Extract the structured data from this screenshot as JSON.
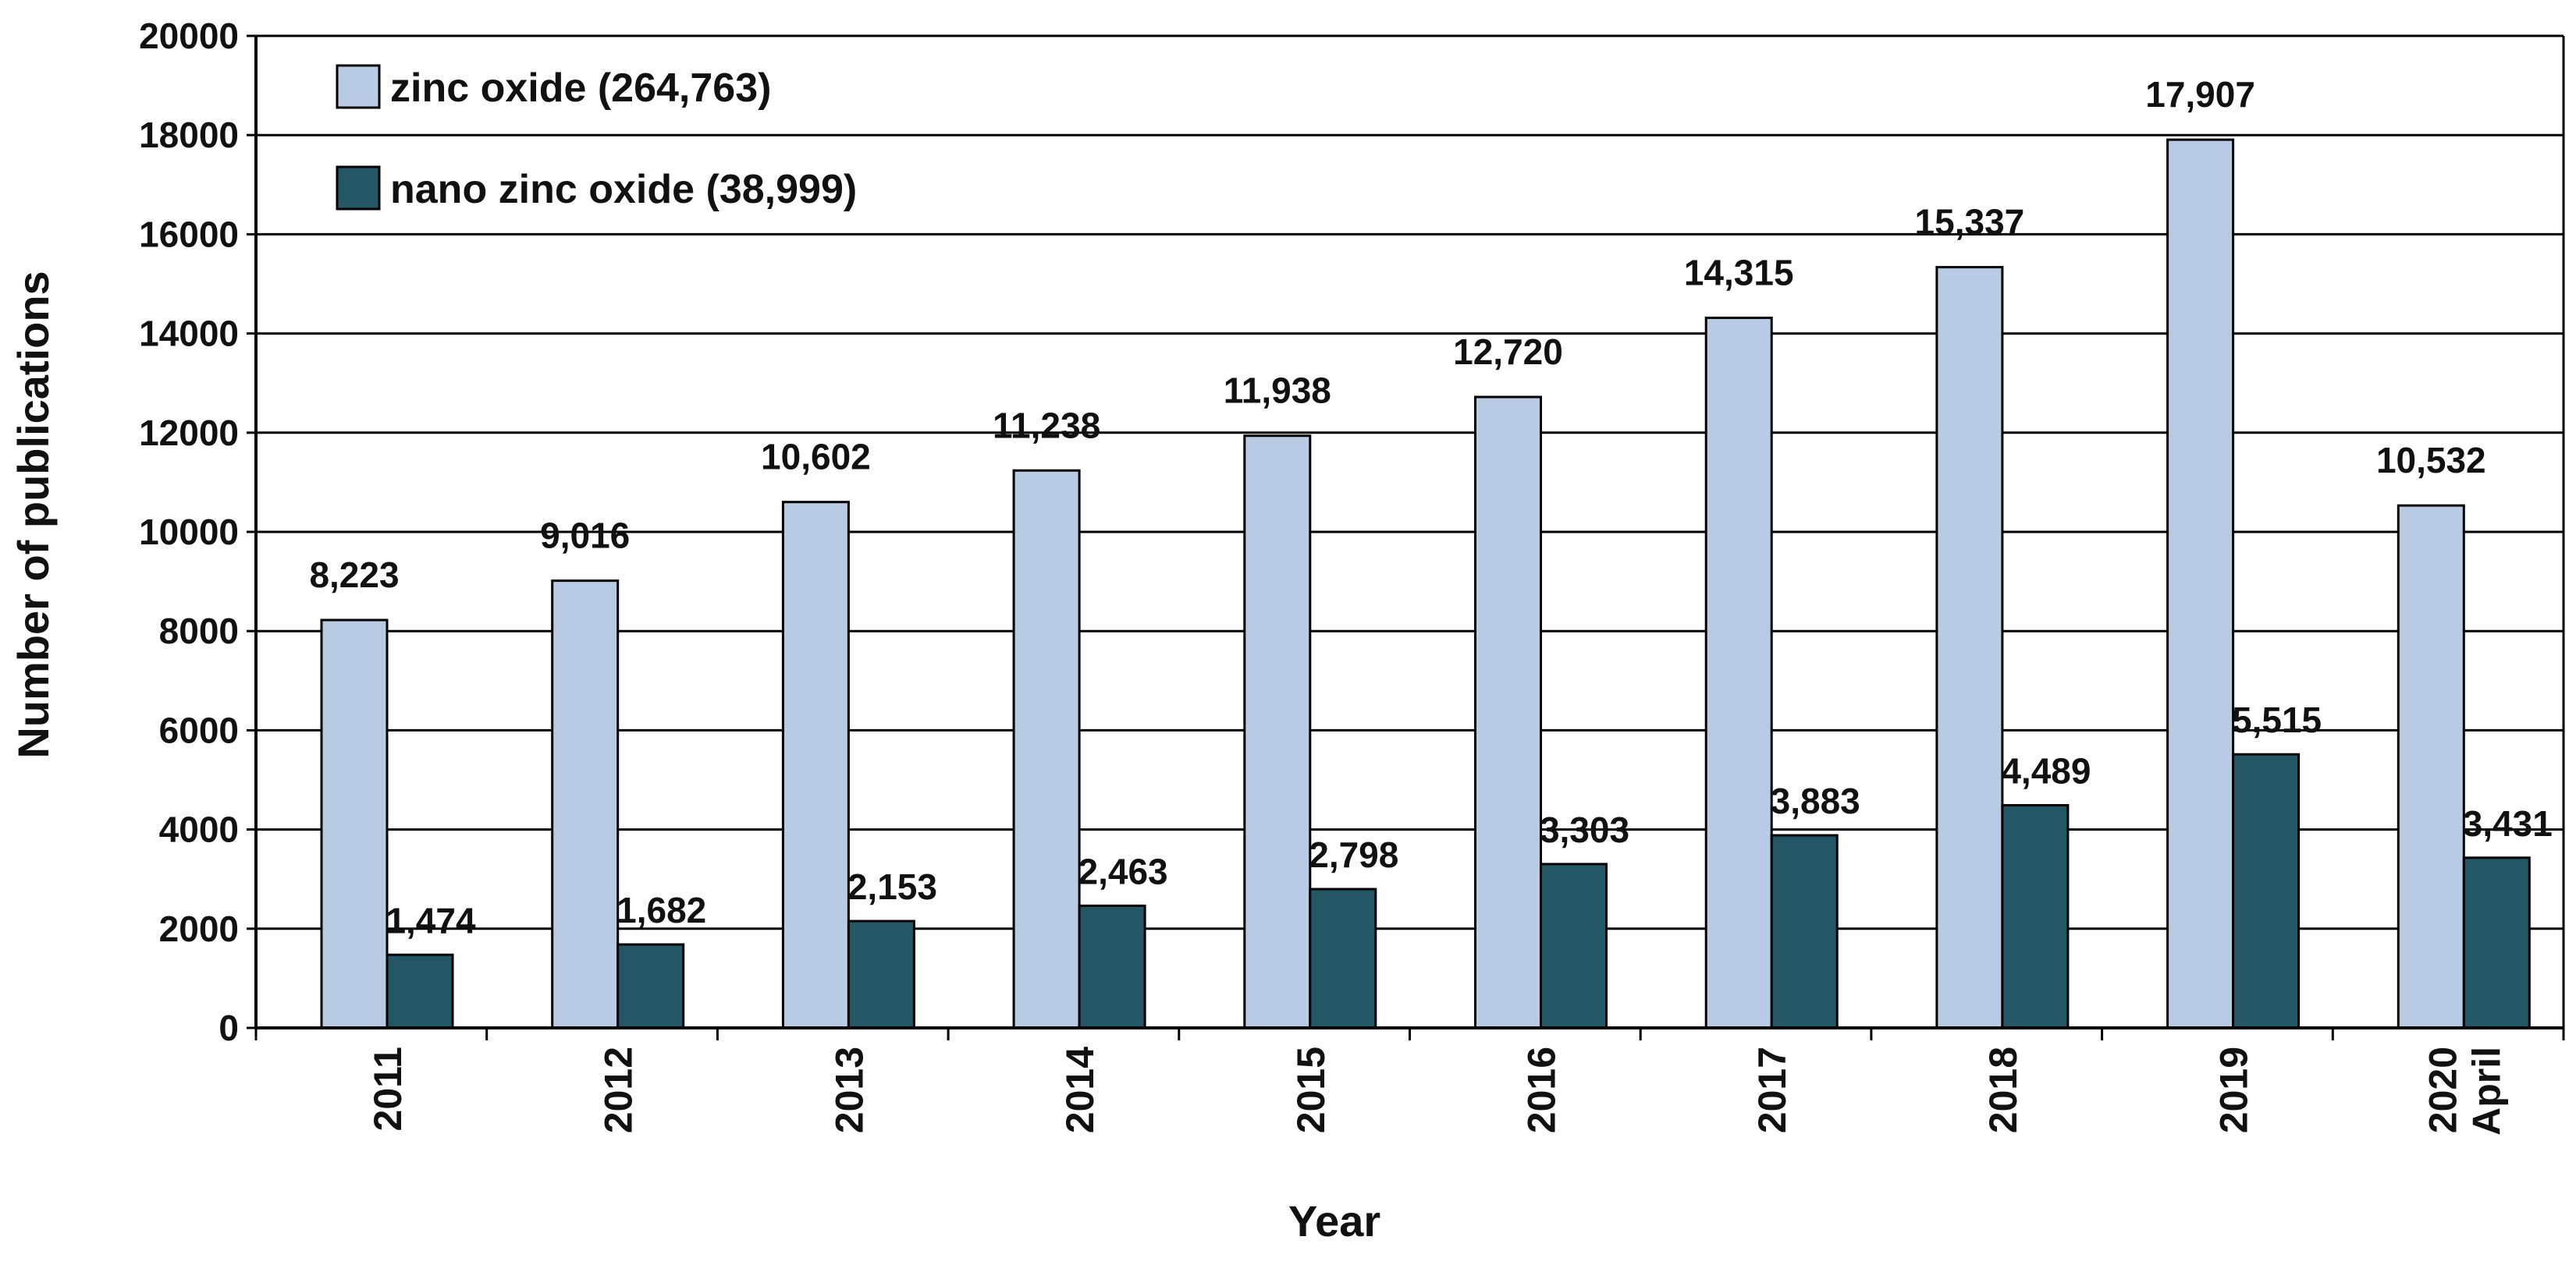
{
  "chart_data": {
    "type": "bar",
    "title": "",
    "xlabel": "Year",
    "ylabel": "Number of publications",
    "ylim": [
      0,
      20000
    ],
    "yticks": [
      0,
      2000,
      4000,
      6000,
      8000,
      10000,
      12000,
      14000,
      16000,
      18000,
      20000
    ],
    "grid": true,
    "legend_position": "top-left",
    "categories": [
      [
        "2011"
      ],
      [
        "2012"
      ],
      [
        "2013"
      ],
      [
        "2014"
      ],
      [
        "2015"
      ],
      [
        "2016"
      ],
      [
        "2017"
      ],
      [
        "2018"
      ],
      [
        "2019"
      ],
      [
        "2020",
        "April"
      ]
    ],
    "series": [
      {
        "name": "zinc oxide",
        "legend_label": "zinc oxide (264,763)",
        "color": "#b9cbe4",
        "values": [
          8223,
          9016,
          10602,
          11238,
          11938,
          12720,
          14315,
          15337,
          17907,
          10532
        ],
        "labels": [
          "8,223",
          "9,016",
          "10,602",
          "11,238",
          "11,938",
          "12,720",
          "14,315",
          "15,337",
          "17,907",
          "10,532"
        ]
      },
      {
        "name": "nano zinc oxide",
        "legend_label": "nano zinc oxide (38,999)",
        "color": "#245766",
        "values": [
          1474,
          1682,
          2153,
          2463,
          2798,
          3303,
          3883,
          4489,
          5515,
          3431
        ],
        "labels": [
          "1,474",
          "1,682",
          "2,153",
          "2,463",
          "2,798",
          "3,303",
          "3,883",
          "4,489",
          "5,515",
          "3,431"
        ]
      }
    ]
  }
}
